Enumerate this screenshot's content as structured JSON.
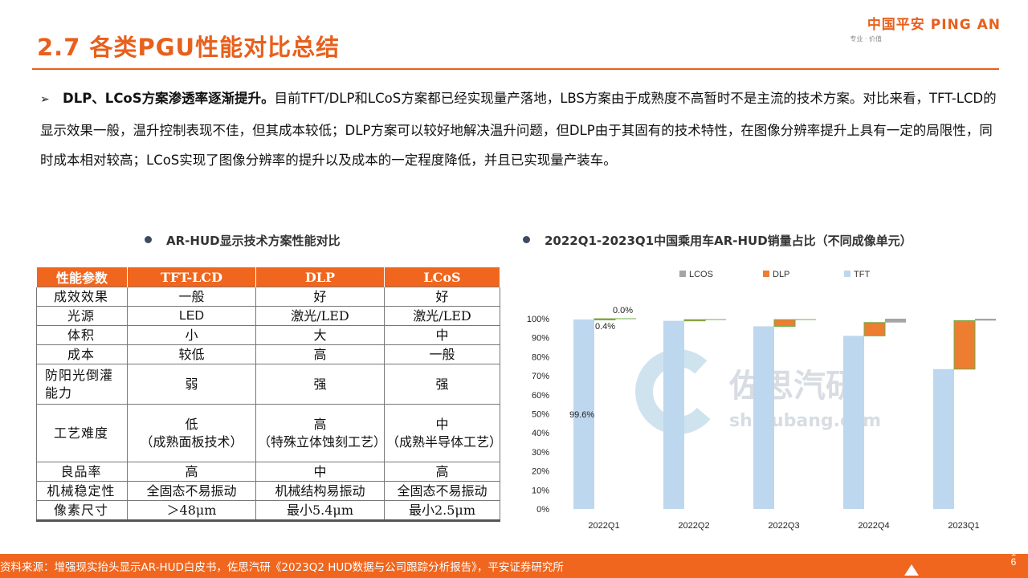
{
  "header": {
    "title": "2.7 各类PGU性能对比总结",
    "logo_main": "中国平安 PING AN",
    "logo_sub": "专业 · 价值"
  },
  "summary": {
    "bullet": "➢",
    "lead": "DLP、LCoS方案渗透率逐渐提升。",
    "text": "目前TFT/DLP和LCoS方案都已经实现量产落地，LBS方案由于成熟度不高暂时不是主流的技术方案。对比来看，TFT-LCD的显示效果一般，温升控制表现不佳，但其成本较低；DLP方案可以较好地解决温升问题，但DLP由于其固有的技术特性，在图像分辨率提升上具有一定的局限性，同时成本相对较高；LCoS实现了图像分辨率的提升以及成本的一定程度降低，并且已实现量产装车。"
  },
  "table_section": {
    "heading": "AR-HUD显示技术方案性能对比",
    "columns": [
      "性能参数",
      "TFT-LCD",
      "DLP",
      "LCoS"
    ],
    "rows": [
      [
        "成效效果",
        "一般",
        "好",
        "好"
      ],
      [
        "光源",
        "LED",
        "激光/LED",
        "激光/LED"
      ],
      [
        "体积",
        "小",
        "大",
        "中"
      ],
      [
        "成本",
        "较低",
        "高",
        "一般"
      ],
      [
        "防阳光倒灌能力",
        "弱",
        "强",
        "强"
      ],
      [
        "工艺难度",
        "低\n（成熟面板技术）",
        "高\n（特殊立体蚀刻工艺）",
        "中\n（成熟半导体工艺）"
      ],
      [
        "良品率",
        "高",
        "中",
        "高"
      ],
      [
        "机械稳定性",
        "全固态不易振动",
        "机械结构易振动",
        "全固态不易振动"
      ],
      [
        "像素尺寸",
        "＞48μm",
        "最小5.4μm",
        "最小2.5μm"
      ]
    ]
  },
  "chart_section": {
    "heading": "2022Q1-2023Q1中国乘用车AR-HUD销量占比（不同成像单元）",
    "watermark_cn": "佐思汽研",
    "watermark_en": "shujubang.com"
  },
  "chart_data": {
    "type": "bar",
    "stacked": true,
    "categories": [
      "2022Q1",
      "2022Q2",
      "2022Q3",
      "2022Q4",
      "2023Q1"
    ],
    "series": [
      {
        "name": "TFT",
        "color": "#bdd7ee",
        "values": [
          99.6,
          98.9,
          96.0,
          91.0,
          73.5
        ]
      },
      {
        "name": "DLP",
        "color": "#ed7d31",
        "values": [
          0.4,
          0.6,
          3.5,
          7.0,
          25.5
        ]
      },
      {
        "name": "LCOS",
        "color": "#a5a5a5",
        "values": [
          0.0,
          0.0,
          0.0,
          2.0,
          1.0
        ]
      }
    ],
    "legend_order": [
      "LCOS",
      "DLP",
      "TFT"
    ],
    "legend_position": "top",
    "data_labels": [
      {
        "text": "0.0%",
        "category": "2022Q1"
      },
      {
        "text": "0.4%",
        "category": "2022Q1"
      },
      {
        "text": "99.6%",
        "category": "2022Q1"
      }
    ],
    "yticks": [
      "0%",
      "10%",
      "20%",
      "30%",
      "40%",
      "50%",
      "60%",
      "70%",
      "80%",
      "90%",
      "100%"
    ],
    "ylim": [
      0,
      100
    ],
    "grid": false
  },
  "footer": {
    "source": "资料来源：增强现实抬头显示AR-HUD白皮书，佐思汽研《2023Q2 HUD数据与公司跟踪分析报告》，平安证券研究所",
    "page": "16"
  },
  "colors": {
    "accent": "#f0661e",
    "title": "#e8601c"
  }
}
